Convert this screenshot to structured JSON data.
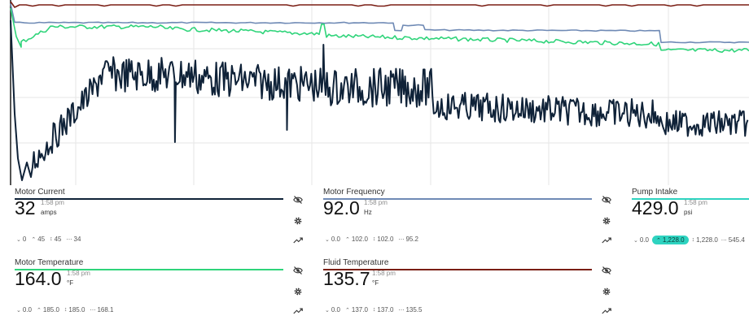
{
  "chart": {
    "colors": {
      "motor_current": "#0f2238",
      "motor_frequency": "#6f8ab5",
      "pump_intake": "#2ed3c0",
      "motor_temperature": "#2fd47a",
      "fluid_temperature": "#7a1e14",
      "grid": "#e6e6e6"
    }
  },
  "cards": [
    {
      "title": "Motor Current",
      "value": "32",
      "time": "1:58 pm",
      "unit": "amps",
      "accent": "#0f2238",
      "highlight": false,
      "stats": {
        "min": "0",
        "max": "45",
        "last": "45",
        "avg": "34"
      }
    },
    {
      "title": "Motor Frequency",
      "value": "92.0",
      "time": "1:58 pm",
      "unit": "Hz",
      "accent": "#6f8ab5",
      "highlight": false,
      "stats": {
        "min": "0.0",
        "max": "102.0",
        "last": "102.0",
        "avg": "95.2"
      }
    },
    {
      "title": "Pump Intake",
      "value": "429.0",
      "time": "1:58 pm",
      "unit": "psi",
      "accent": "#2ed3c0",
      "highlight": true,
      "stats": {
        "min": "0.0",
        "max": "1,228.0",
        "last": "1,228.0",
        "avg": "545.4"
      }
    },
    {
      "title": "Motor Temperature",
      "value": "164.0",
      "time": "1:58 pm",
      "unit": "°F",
      "accent": "#2fd47a",
      "highlight": false,
      "stats": {
        "min": "0.0",
        "max": "185.0",
        "last": "185.0",
        "avg": "168.1"
      }
    },
    {
      "title": "Fluid Temperature",
      "value": "135.7",
      "time": "1:58 pm",
      "unit": "°F",
      "accent": "#7a1e14",
      "highlight": false,
      "stats": {
        "min": "0.0",
        "max": "137.0",
        "last": "137.0",
        "avg": "135.5"
      }
    }
  ],
  "icons": {
    "visibility": "eye-slash-icon",
    "settings": "gear-icon",
    "trend": "trend-icon",
    "min": "chevron-down-icon",
    "max": "chevron-up-icon",
    "last": "up-down-icon",
    "avg": "dash-icon"
  }
}
